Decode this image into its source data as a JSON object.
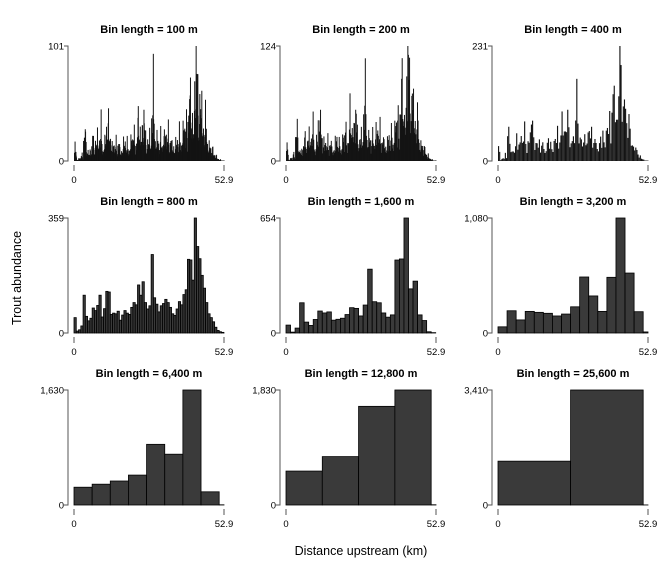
{
  "figure": {
    "background": "#ffffff"
  },
  "chart_data": {
    "type": "bar",
    "subtype": "histogram-small-multiples-3x3",
    "shared": {
      "xlabel": "Distance upstream (km)",
      "ylabel": "Trout abundance",
      "x_min_label": "0",
      "x_max_label": "52.9",
      "x_range_km": [
        0,
        52.9
      ],
      "y_zero_label": "0",
      "grid": "off",
      "legend": "none"
    },
    "colors": {
      "bar_fill": "#3a3a3a",
      "bar_stroke": "#000000",
      "dense_fill": "#141414",
      "axis": "#555555",
      "text": "#000000"
    },
    "split_pattern": [
      0.62,
      0.31,
      0.55,
      0.74,
      0.42,
      0.66,
      0.5,
      0.36,
      0.71,
      0.47,
      0.58,
      0.33,
      0.68,
      0.52,
      0.44,
      0.63,
      0.38,
      0.57,
      0.72,
      0.45,
      0.6,
      0.35,
      0.65
    ],
    "panels": [
      {
        "title": "Bin length = 100 m",
        "bin_m": 100,
        "ymax": 101,
        "ymax_label": "101",
        "n_bins": 529,
        "derive_from_bin": 800,
        "passes": 3
      },
      {
        "title": "Bin length = 200 m",
        "bin_m": 200,
        "ymax": 124,
        "ymax_label": "124",
        "n_bins": 265,
        "derive_from_bin": 800,
        "passes": 2
      },
      {
        "title": "Bin length = 400 m",
        "bin_m": 400,
        "ymax": 231,
        "ymax_label": "231",
        "n_bins": 133,
        "derive_from_bin": 800,
        "passes": 1
      },
      {
        "title": "Bin length = 800 m",
        "bin_m": 800,
        "ymax": 359,
        "ymax_label": "359",
        "n_bins": 67,
        "values": [
          48,
          6,
          10,
          22,
          118,
          52,
          38,
          46,
          78,
          70,
          86,
          118,
          50,
          76,
          130,
          128,
          58,
          62,
          60,
          68,
          40,
          56,
          70,
          62,
          58,
          80,
          95,
          88,
          150,
          118,
          160,
          95,
          75,
          85,
          245,
          110,
          90,
          66,
          85,
          92,
          105,
          95,
          80,
          60,
          55,
          75,
          98,
          88,
          120,
          135,
          230,
          228,
          165,
          359,
          270,
          232,
          180,
          140,
          95,
          60,
          48,
          35,
          18,
          8,
          4,
          2,
          1
        ]
      },
      {
        "title": "Bin length = 1,600 m",
        "bin_m": 1600,
        "ymax": 654,
        "ymax_label": "654",
        "n_bins": 34,
        "values": [
          45,
          5,
          28,
          172,
          62,
          43,
          77,
          125,
          114,
          120,
          73,
          78,
          84,
          105,
          144,
          140,
          97,
          159,
          363,
          178,
          172,
          114,
          90,
          103,
          415,
          421,
          654,
          251,
          295,
          103,
          71,
          7,
          2,
          0
        ]
      },
      {
        "title": "Bin length = 3,200 m",
        "bin_m": 3200,
        "ymax": 1080,
        "ymax_label": "1,080",
        "n_bins": 17,
        "values": [
          58,
          209,
          123,
          203,
          194,
          185,
          160,
          178,
          246,
          526,
          348,
          203,
          523,
          1080,
          563,
          200,
          10
        ]
      },
      {
        "title": "Bin length = 6,400 m",
        "bin_m": 6400,
        "ymax": 1630,
        "ymax_label": "1,630",
        "n_bins": 9,
        "values": [
          252,
          295,
          340,
          424,
          860,
          720,
          1630,
          187,
          3
        ]
      },
      {
        "title": "Bin length = 12,800 m",
        "bin_m": 12800,
        "ymax": 1830,
        "ymax_label": "1,830",
        "n_bins": 5,
        "values": [
          540,
          770,
          1570,
          1830,
          4
        ]
      },
      {
        "title": "Bin length = 25,600 m",
        "bin_m": 25600,
        "ymax": 3410,
        "ymax_label": "3,410",
        "n_bins": 3,
        "values": [
          1300,
          3410,
          2
        ]
      }
    ]
  }
}
